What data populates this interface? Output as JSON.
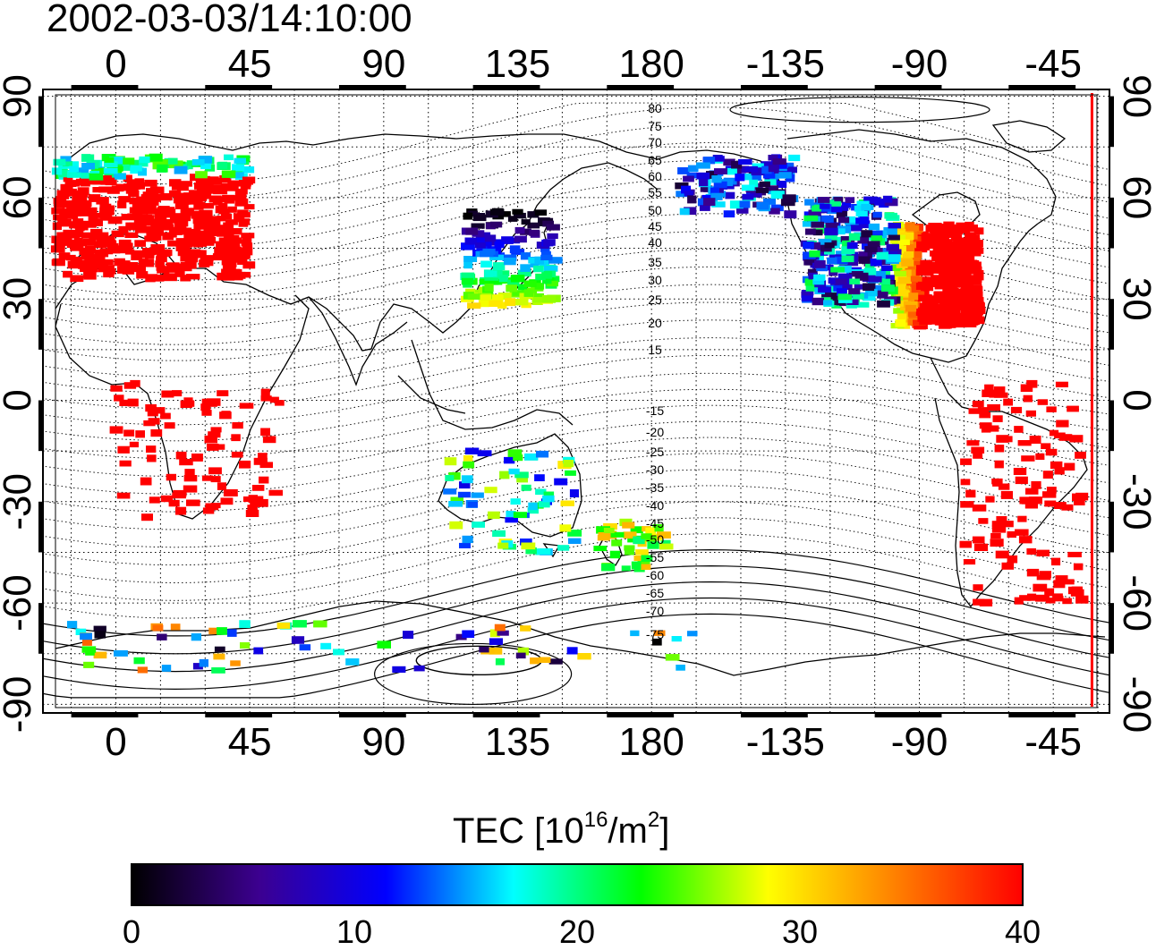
{
  "title": "2002-03-03/14:10:00",
  "map": {
    "lon_ticks": [
      {
        "lon": 0,
        "label": "0"
      },
      {
        "lon": 45,
        "label": "45"
      },
      {
        "lon": 90,
        "label": "90"
      },
      {
        "lon": 135,
        "label": "135"
      },
      {
        "lon": 180,
        "label": "180"
      },
      {
        "lon": 225,
        "label": "-135"
      },
      {
        "lon": 270,
        "label": "-90"
      },
      {
        "lon": 315,
        "label": "-45"
      }
    ],
    "lat_ticks": [
      {
        "lat": 90,
        "label": "90"
      },
      {
        "lat": 60,
        "label": "60"
      },
      {
        "lat": 30,
        "label": "30"
      },
      {
        "lat": 0,
        "label": "0"
      },
      {
        "lat": -30,
        "label": "-30"
      },
      {
        "lat": -60,
        "label": "-60"
      },
      {
        "lat": -90,
        "label": "-90"
      }
    ],
    "magnetic_latitude_labels_north": [
      "80",
      "75",
      "70",
      "65",
      "60",
      "55",
      "50",
      "45",
      "40",
      "35",
      "30",
      "25",
      "20",
      "15"
    ],
    "magnetic_latitude_labels_south": [
      "-15",
      "-20",
      "-25",
      "-30",
      "-35",
      "-40",
      "-45",
      "-50",
      "-55",
      "-60",
      "-65",
      "-70",
      "-75"
    ],
    "terminator_color": "#ff0000",
    "terminator_lon": 328
  },
  "tec_regions": [
    {
      "name": "europe",
      "tec": 40
    },
    {
      "name": "eastern-north-america",
      "tec": 40
    },
    {
      "name": "japan",
      "tec": 22
    },
    {
      "name": "western-north-america",
      "tec": 12
    },
    {
      "name": "alaska",
      "tec": 10
    },
    {
      "name": "australia",
      "tec": 20
    },
    {
      "name": "new-zealand",
      "tec": 26
    },
    {
      "name": "antarctica",
      "tec": 18
    },
    {
      "name": "south-america",
      "tec": 40
    },
    {
      "name": "africa",
      "tec": 40
    }
  ],
  "colorbar": {
    "title_prefix": "TEC  [10",
    "title_sup1": "16",
    "title_mid": "/m",
    "title_sup2": "2",
    "title_suffix": "]",
    "min": 0,
    "max": 40,
    "ticks": [
      "0",
      "10",
      "20",
      "30",
      "40"
    ],
    "colors": [
      "#000000",
      "#3c0090",
      "#0000ff",
      "#00ffff",
      "#00ff00",
      "#ffff00",
      "#ff8000",
      "#ff0000"
    ]
  }
}
